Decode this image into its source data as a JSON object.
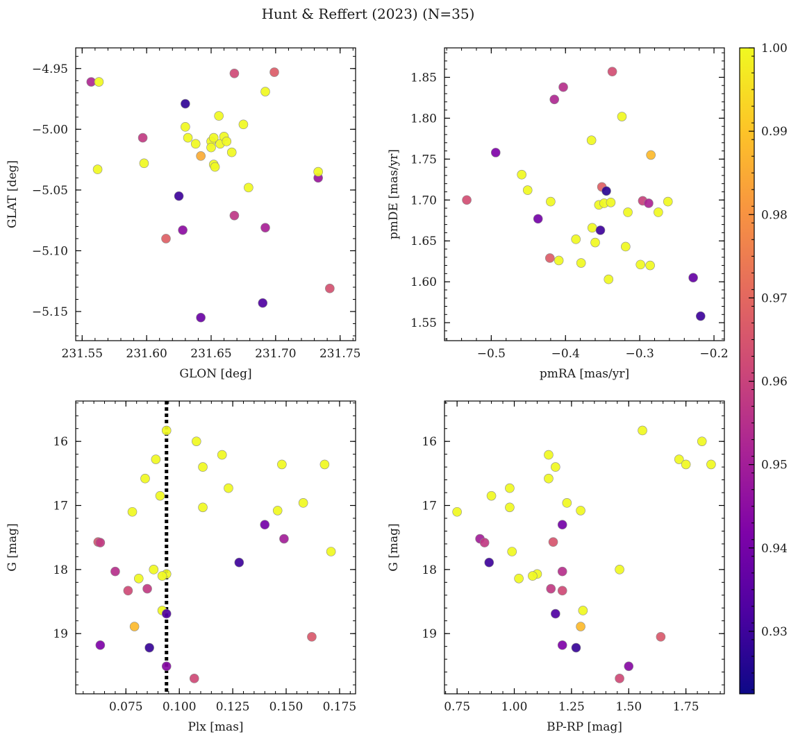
{
  "figure": {
    "title": "Hunt & Reffert (2023) (N=35)",
    "colorbar": {
      "vmin": 0.9225,
      "vmax": 1.0,
      "ticks": [
        0.93,
        0.94,
        0.95,
        0.96,
        0.97,
        0.98,
        0.99,
        1.0
      ],
      "tick_labels": [
        "0.93",
        "0.94",
        "0.95",
        "0.96",
        "0.97",
        "0.98",
        "0.99",
        "1.00"
      ],
      "colormap": "plasma"
    }
  },
  "chart_data": [
    {
      "type": "scatter",
      "xlabel": "GLON [deg]",
      "ylabel": "GLAT [deg]",
      "xlim": [
        231.545,
        231.762
      ],
      "ylim": [
        -5.174,
        -4.933
      ],
      "y_inverted": false,
      "xticks": [
        231.55,
        231.6,
        231.65,
        231.7,
        231.75
      ],
      "xtick_labels": [
        "231.55",
        "231.60",
        "231.65",
        "231.70",
        "231.75"
      ],
      "yticks": [
        -4.95,
        -5.0,
        -5.05,
        -5.1,
        -5.15
      ],
      "ytick_labels": [
        "−4.95",
        "−5.00",
        "−5.05",
        "−5.10",
        "−5.15"
      ],
      "points": [
        {
          "x": 231.557,
          "y": -4.961,
          "c": 0.953
        },
        {
          "x": 231.563,
          "y": -4.961,
          "c": 1.0
        },
        {
          "x": 231.562,
          "y": -5.033,
          "c": 1.0
        },
        {
          "x": 231.597,
          "y": -5.007,
          "c": 0.958
        },
        {
          "x": 231.598,
          "y": -5.028,
          "c": 1.0
        },
        {
          "x": 231.615,
          "y": -5.09,
          "c": 0.968
        },
        {
          "x": 231.625,
          "y": -5.055,
          "c": 0.93
        },
        {
          "x": 231.628,
          "y": -5.083,
          "c": 0.945
        },
        {
          "x": 231.63,
          "y": -4.979,
          "c": 0.928
        },
        {
          "x": 231.63,
          "y": -4.998,
          "c": 1.0
        },
        {
          "x": 231.632,
          "y": -5.007,
          "c": 1.0
        },
        {
          "x": 231.638,
          "y": -5.012,
          "c": 1.0
        },
        {
          "x": 231.642,
          "y": -5.022,
          "c": 0.985
        },
        {
          "x": 231.642,
          "y": -5.155,
          "c": 0.938
        },
        {
          "x": 231.65,
          "y": -5.01,
          "c": 1.0
        },
        {
          "x": 231.65,
          "y": -5.015,
          "c": 1.0
        },
        {
          "x": 231.652,
          "y": -5.007,
          "c": 1.0
        },
        {
          "x": 231.652,
          "y": -5.029,
          "c": 1.0
        },
        {
          "x": 231.653,
          "y": -5.031,
          "c": 1.0
        },
        {
          "x": 231.656,
          "y": -4.989,
          "c": 1.0
        },
        {
          "x": 231.657,
          "y": -5.012,
          "c": 1.0
        },
        {
          "x": 231.66,
          "y": -5.006,
          "c": 1.0
        },
        {
          "x": 231.662,
          "y": -5.01,
          "c": 1.0
        },
        {
          "x": 231.666,
          "y": -5.019,
          "c": 1.0
        },
        {
          "x": 231.668,
          "y": -4.954,
          "c": 0.962
        },
        {
          "x": 231.668,
          "y": -5.071,
          "c": 0.957
        },
        {
          "x": 231.675,
          "y": -4.996,
          "c": 1.0
        },
        {
          "x": 231.679,
          "y": -5.048,
          "c": 1.0
        },
        {
          "x": 231.69,
          "y": -5.143,
          "c": 0.933
        },
        {
          "x": 231.692,
          "y": -4.969,
          "c": 1.0
        },
        {
          "x": 231.692,
          "y": -5.081,
          "c": 0.951
        },
        {
          "x": 231.699,
          "y": -4.953,
          "c": 0.967
        },
        {
          "x": 231.733,
          "y": -5.04,
          "c": 0.948
        },
        {
          "x": 231.733,
          "y": -5.035,
          "c": 1.0
        },
        {
          "x": 231.742,
          "y": -5.131,
          "c": 0.964
        }
      ]
    },
    {
      "type": "scatter",
      "xlabel": "pmRA [mas/yr]",
      "ylabel": "pmDE [mas/yr]",
      "xlim": [
        -0.563,
        -0.186
      ],
      "ylim": [
        1.528,
        1.886
      ],
      "y_inverted": false,
      "xticks": [
        -0.5,
        -0.4,
        -0.3,
        -0.2
      ],
      "xtick_labels": [
        "−0.5",
        "−0.4",
        "−0.3",
        "−0.2"
      ],
      "yticks": [
        1.55,
        1.6,
        1.65,
        1.7,
        1.75,
        1.8,
        1.85
      ],
      "ytick_labels": [
        "1.55",
        "1.60",
        "1.65",
        "1.70",
        "1.75",
        "1.80",
        "1.85"
      ],
      "points": [
        {
          "x": -0.533,
          "y": 1.7,
          "c": 0.963
        },
        {
          "x": -0.494,
          "y": 1.758,
          "c": 0.942
        },
        {
          "x": -0.459,
          "y": 1.731,
          "c": 1.0
        },
        {
          "x": -0.451,
          "y": 1.712,
          "c": 1.0
        },
        {
          "x": -0.437,
          "y": 1.677,
          "c": 0.94
        },
        {
          "x": -0.421,
          "y": 1.629,
          "c": 0.967
        },
        {
          "x": -0.42,
          "y": 1.698,
          "c": 1.0
        },
        {
          "x": -0.415,
          "y": 1.823,
          "c": 0.953
        },
        {
          "x": -0.409,
          "y": 1.626,
          "c": 1.0
        },
        {
          "x": -0.403,
          "y": 1.838,
          "c": 0.955
        },
        {
          "x": -0.386,
          "y": 1.652,
          "c": 1.0
        },
        {
          "x": -0.379,
          "y": 1.623,
          "c": 1.0
        },
        {
          "x": -0.365,
          "y": 1.773,
          "c": 1.0
        },
        {
          "x": -0.364,
          "y": 1.666,
          "c": 1.0
        },
        {
          "x": -0.36,
          "y": 1.648,
          "c": 1.0
        },
        {
          "x": -0.355,
          "y": 1.694,
          "c": 1.0
        },
        {
          "x": -0.353,
          "y": 1.663,
          "c": 0.93
        },
        {
          "x": -0.351,
          "y": 1.716,
          "c": 0.968
        },
        {
          "x": -0.348,
          "y": 1.696,
          "c": 1.0
        },
        {
          "x": -0.345,
          "y": 1.711,
          "c": 0.927
        },
        {
          "x": -0.342,
          "y": 1.603,
          "c": 1.0
        },
        {
          "x": -0.339,
          "y": 1.697,
          "c": 1.0
        },
        {
          "x": -0.337,
          "y": 1.857,
          "c": 0.963
        },
        {
          "x": -0.324,
          "y": 1.802,
          "c": 1.0
        },
        {
          "x": -0.319,
          "y": 1.643,
          "c": 1.0
        },
        {
          "x": -0.316,
          "y": 1.685,
          "c": 1.0
        },
        {
          "x": -0.299,
          "y": 1.621,
          "c": 1.0
        },
        {
          "x": -0.296,
          "y": 1.699,
          "c": 0.96
        },
        {
          "x": -0.288,
          "y": 1.696,
          "c": 0.952
        },
        {
          "x": -0.286,
          "y": 1.62,
          "c": 1.0
        },
        {
          "x": -0.285,
          "y": 1.755,
          "c": 0.988
        },
        {
          "x": -0.275,
          "y": 1.685,
          "c": 1.0
        },
        {
          "x": -0.262,
          "y": 1.698,
          "c": 1.0
        },
        {
          "x": -0.228,
          "y": 1.605,
          "c": 0.937
        },
        {
          "x": -0.218,
          "y": 1.558,
          "c": 0.93
        }
      ]
    },
    {
      "type": "scatter",
      "xlabel": "Plx [mas]",
      "ylabel": "G [mag]",
      "xlim": [
        0.0515,
        0.1825
      ],
      "ylim": [
        19.94,
        15.37
      ],
      "y_inverted": true,
      "vline": {
        "x": 0.094,
        "style": "dotted",
        "color": "#000000"
      },
      "xticks": [
        0.075,
        0.1,
        0.125,
        0.15,
        0.175
      ],
      "xtick_labels": [
        "0.075",
        "0.100",
        "0.125",
        "0.150",
        "0.175"
      ],
      "yticks": [
        16,
        17,
        18,
        19
      ],
      "ytick_labels": [
        "16",
        "17",
        "18",
        "19"
      ],
      "points": [
        {
          "x": 0.094,
          "y": 15.83,
          "c": 1.0
        },
        {
          "x": 0.108,
          "y": 16.0,
          "c": 1.0
        },
        {
          "x": 0.12,
          "y": 16.21,
          "c": 1.0
        },
        {
          "x": 0.089,
          "y": 16.28,
          "c": 1.0
        },
        {
          "x": 0.148,
          "y": 16.36,
          "c": 1.0
        },
        {
          "x": 0.168,
          "y": 16.36,
          "c": 1.0
        },
        {
          "x": 0.111,
          "y": 16.4,
          "c": 1.0
        },
        {
          "x": 0.084,
          "y": 16.58,
          "c": 1.0
        },
        {
          "x": 0.123,
          "y": 16.73,
          "c": 1.0
        },
        {
          "x": 0.091,
          "y": 16.85,
          "c": 1.0
        },
        {
          "x": 0.158,
          "y": 16.96,
          "c": 1.0
        },
        {
          "x": 0.111,
          "y": 17.03,
          "c": 1.0
        },
        {
          "x": 0.146,
          "y": 17.08,
          "c": 1.0
        },
        {
          "x": 0.078,
          "y": 17.1,
          "c": 1.0
        },
        {
          "x": 0.14,
          "y": 17.3,
          "c": 0.94
        },
        {
          "x": 0.149,
          "y": 17.52,
          "c": 0.95
        },
        {
          "x": 0.062,
          "y": 17.57,
          "c": 0.965
        },
        {
          "x": 0.063,
          "y": 17.58,
          "c": 0.958
        },
        {
          "x": 0.171,
          "y": 17.72,
          "c": 1.0
        },
        {
          "x": 0.128,
          "y": 17.89,
          "c": 0.93
        },
        {
          "x": 0.088,
          "y": 18.0,
          "c": 1.0
        },
        {
          "x": 0.07,
          "y": 18.03,
          "c": 0.955
        },
        {
          "x": 0.094,
          "y": 18.07,
          "c": 1.0
        },
        {
          "x": 0.092,
          "y": 18.1,
          "c": 1.0
        },
        {
          "x": 0.081,
          "y": 18.14,
          "c": 1.0
        },
        {
          "x": 0.085,
          "y": 18.3,
          "c": 0.958
        },
        {
          "x": 0.076,
          "y": 18.33,
          "c": 0.962
        },
        {
          "x": 0.092,
          "y": 18.64,
          "c": 1.0
        },
        {
          "x": 0.094,
          "y": 18.69,
          "c": 0.933
        },
        {
          "x": 0.079,
          "y": 18.89,
          "c": 0.988
        },
        {
          "x": 0.162,
          "y": 19.05,
          "c": 0.966
        },
        {
          "x": 0.063,
          "y": 19.18,
          "c": 0.942
        },
        {
          "x": 0.086,
          "y": 19.22,
          "c": 0.929
        },
        {
          "x": 0.094,
          "y": 19.51,
          "c": 0.944
        },
        {
          "x": 0.107,
          "y": 19.7,
          "c": 0.962
        }
      ]
    },
    {
      "type": "scatter",
      "xlabel": "BP-RP [mag]",
      "ylabel": "G [mag]",
      "xlim": [
        0.695,
        1.918
      ],
      "ylim": [
        19.94,
        15.37
      ],
      "y_inverted": true,
      "xticks": [
        0.75,
        1.0,
        1.25,
        1.5,
        1.75
      ],
      "xtick_labels": [
        "0.75",
        "1.00",
        "1.25",
        "1.50",
        "1.75"
      ],
      "yticks": [
        16,
        17,
        18,
        19
      ],
      "ytick_labels": [
        "16",
        "17",
        "18",
        "19"
      ],
      "points": [
        {
          "x": 1.56,
          "y": 15.83,
          "c": 1.0
        },
        {
          "x": 1.82,
          "y": 16.0,
          "c": 1.0
        },
        {
          "x": 1.15,
          "y": 16.21,
          "c": 1.0
        },
        {
          "x": 1.72,
          "y": 16.28,
          "c": 1.0
        },
        {
          "x": 1.75,
          "y": 16.36,
          "c": 1.0
        },
        {
          "x": 1.86,
          "y": 16.36,
          "c": 1.0
        },
        {
          "x": 1.18,
          "y": 16.4,
          "c": 1.0
        },
        {
          "x": 1.15,
          "y": 16.58,
          "c": 1.0
        },
        {
          "x": 0.98,
          "y": 16.73,
          "c": 1.0
        },
        {
          "x": 0.9,
          "y": 16.85,
          "c": 1.0
        },
        {
          "x": 1.23,
          "y": 16.96,
          "c": 1.0
        },
        {
          "x": 0.98,
          "y": 17.03,
          "c": 1.0
        },
        {
          "x": 1.29,
          "y": 17.08,
          "c": 1.0
        },
        {
          "x": 0.75,
          "y": 17.1,
          "c": 1.0
        },
        {
          "x": 1.21,
          "y": 17.3,
          "c": 0.94
        },
        {
          "x": 0.85,
          "y": 17.52,
          "c": 0.95
        },
        {
          "x": 1.17,
          "y": 17.57,
          "c": 0.965
        },
        {
          "x": 0.87,
          "y": 17.58,
          "c": 0.958
        },
        {
          "x": 0.99,
          "y": 17.72,
          "c": 1.0
        },
        {
          "x": 0.89,
          "y": 17.89,
          "c": 0.93
        },
        {
          "x": 1.46,
          "y": 18.0,
          "c": 1.0
        },
        {
          "x": 1.21,
          "y": 18.03,
          "c": 0.955
        },
        {
          "x": 1.1,
          "y": 18.07,
          "c": 1.0
        },
        {
          "x": 1.08,
          "y": 18.1,
          "c": 1.0
        },
        {
          "x": 1.02,
          "y": 18.14,
          "c": 1.0
        },
        {
          "x": 1.16,
          "y": 18.3,
          "c": 0.958
        },
        {
          "x": 1.21,
          "y": 18.33,
          "c": 0.962
        },
        {
          "x": 1.3,
          "y": 18.64,
          "c": 1.0
        },
        {
          "x": 1.18,
          "y": 18.69,
          "c": 0.933
        },
        {
          "x": 1.29,
          "y": 18.89,
          "c": 0.988
        },
        {
          "x": 1.64,
          "y": 19.05,
          "c": 0.966
        },
        {
          "x": 1.21,
          "y": 19.18,
          "c": 0.942
        },
        {
          "x": 1.27,
          "y": 19.22,
          "c": 0.929
        },
        {
          "x": 1.5,
          "y": 19.51,
          "c": 0.944
        },
        {
          "x": 1.46,
          "y": 19.7,
          "c": 0.962
        }
      ]
    }
  ]
}
